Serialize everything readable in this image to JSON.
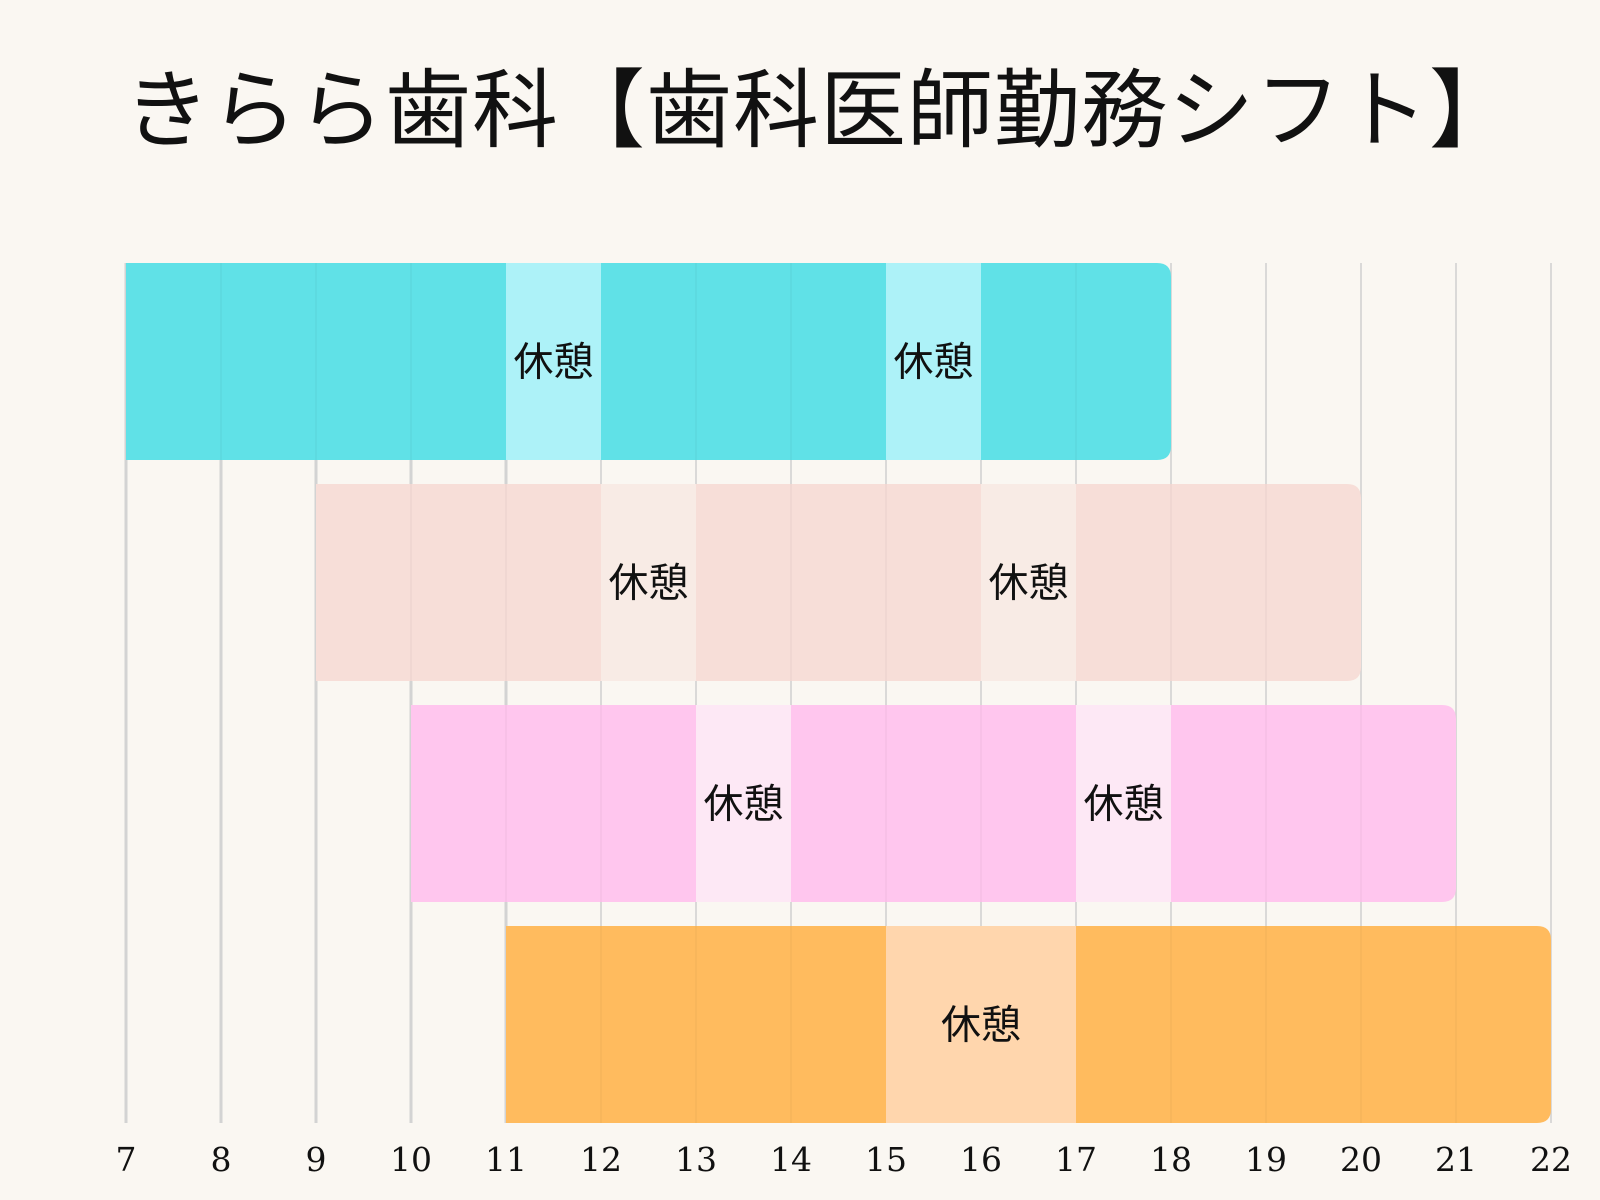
{
  "chart_data": {
    "type": "gantt",
    "title": "きらら歯科【歯科医師勤務シフト】",
    "x_unit": "hour",
    "xlim": [
      7,
      22
    ],
    "x_ticks": [
      7,
      8,
      9,
      10,
      11,
      12,
      13,
      14,
      15,
      16,
      17,
      18,
      19,
      20,
      21,
      22
    ],
    "grid": true,
    "series": [
      {
        "start": 7,
        "end": 18,
        "color": "#60e1e7",
        "break_color": "#adf2f8",
        "breaks": [
          {
            "start": 11,
            "end": 12,
            "label": "休憩"
          },
          {
            "start": 15,
            "end": 16,
            "label": "休憩"
          }
        ]
      },
      {
        "start": 9,
        "end": 20,
        "color": "#f7ded8",
        "break_color": "#f8ebe5",
        "breaks": [
          {
            "start": 12,
            "end": 13,
            "label": "休憩"
          },
          {
            "start": 16,
            "end": 17,
            "label": "休憩"
          }
        ]
      },
      {
        "start": 10,
        "end": 21,
        "color": "#ffc6ee",
        "break_color": "#fde8f5",
        "breaks": [
          {
            "start": 13,
            "end": 14,
            "label": "休憩"
          },
          {
            "start": 17,
            "end": 18,
            "label": "休憩"
          }
        ]
      },
      {
        "start": 11,
        "end": 22,
        "color": "#ffbb5e",
        "break_color": "#ffd6ad",
        "breaks": [
          {
            "start": 15,
            "end": 17,
            "label": "休憩"
          }
        ]
      }
    ]
  }
}
